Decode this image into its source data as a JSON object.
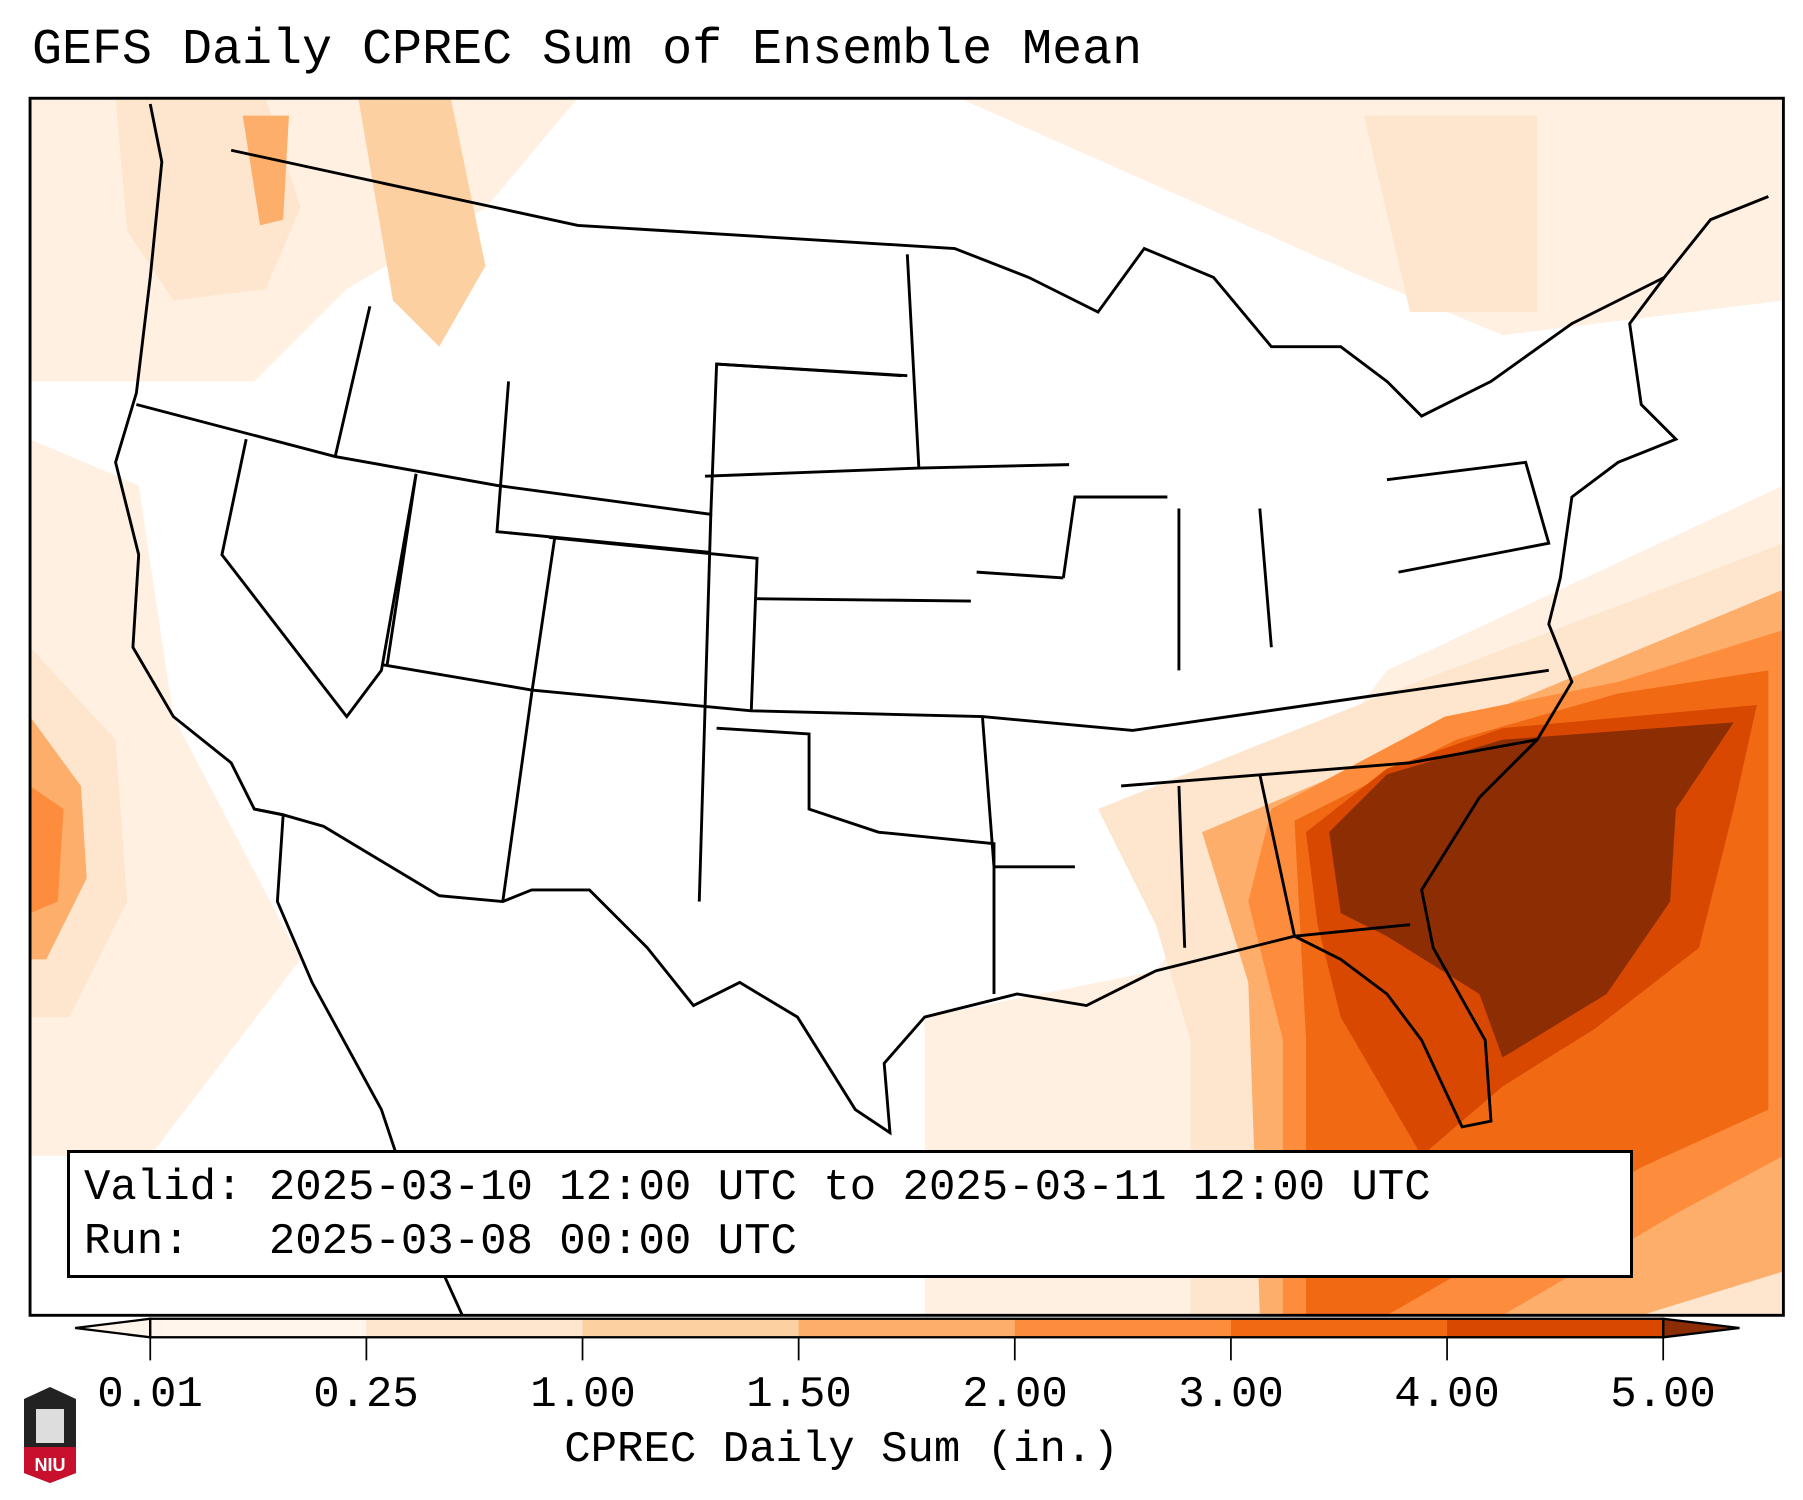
{
  "title": "GEFS Daily CPREC Sum of Ensemble Mean",
  "info": {
    "valid_label": "Valid:",
    "valid_text": "2025-03-10 12:00 UTC to 2025-03-11 12:00 UTC",
    "run_label": "Run:",
    "run_text": "2025-03-08 00:00 UTC"
  },
  "colorbar": {
    "label": "CPREC Daily Sum (in.)",
    "ticks": [
      "0.01",
      "0.25",
      "1.00",
      "1.50",
      "2.00",
      "3.00",
      "4.00",
      "5.00"
    ],
    "colors": [
      "#fff5eb",
      "#fee6ce",
      "#fdd0a2",
      "#fdae6b",
      "#fd8d3c",
      "#f16913",
      "#d94801",
      "#8c2d04"
    ],
    "extend": "both"
  },
  "logo": {
    "text": "NIU"
  }
}
